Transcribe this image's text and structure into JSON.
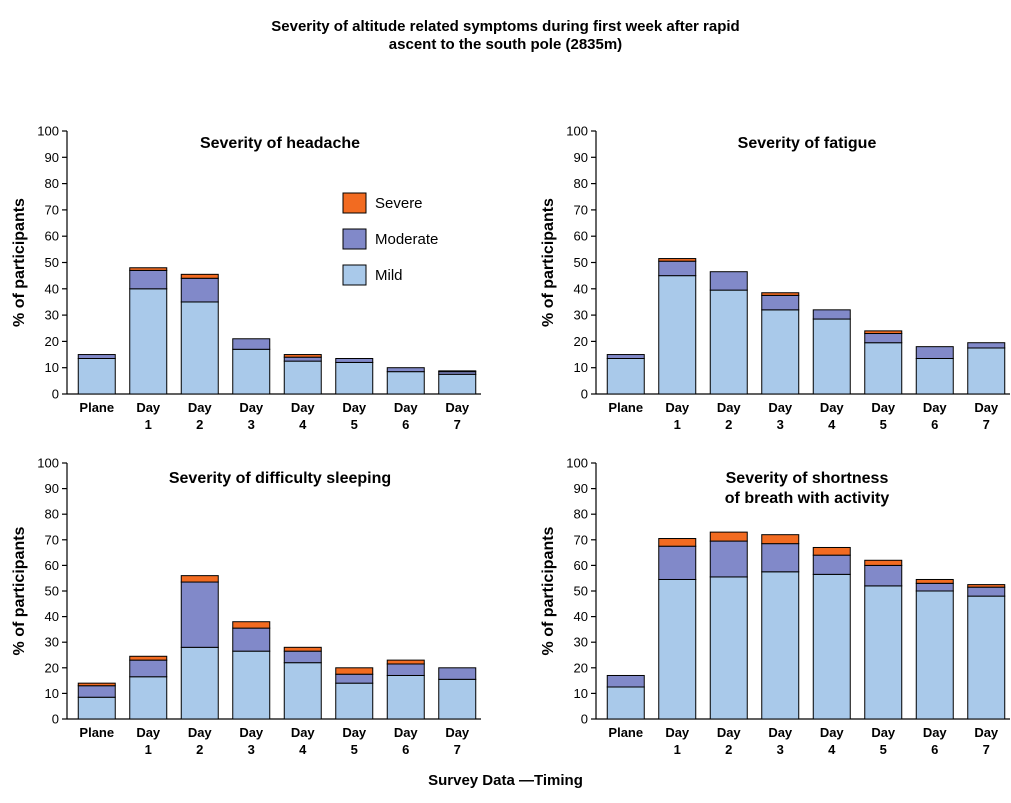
{
  "figure": {
    "title_line1": "Severity of altitude related symptoms during first week after rapid",
    "title_line2": "ascent to the south pole (2835m)",
    "xlabel": "Survey Data —Timing"
  },
  "legend": [
    {
      "name": "Severe",
      "color": "#f26b21"
    },
    {
      "name": "Moderate",
      "color": "#8189c9"
    },
    {
      "name": "Mild",
      "color": "#a9c9ea"
    }
  ],
  "chart_data": [
    {
      "type": "bar",
      "stacked": true,
      "title": [
        "Severity of headache"
      ],
      "ylabel": "% of participants",
      "ylim": [
        0,
        100
      ],
      "yticks": [
        0,
        10,
        20,
        30,
        40,
        50,
        60,
        70,
        80,
        90,
        100
      ],
      "categories": [
        [
          "Plane"
        ],
        [
          "Day",
          "1"
        ],
        [
          "Day",
          "2"
        ],
        [
          "Day",
          "3"
        ],
        [
          "Day",
          "4"
        ],
        [
          "Day",
          "5"
        ],
        [
          "Day",
          "6"
        ],
        [
          "Day",
          "7"
        ]
      ],
      "legend_position": "inside-right",
      "series": [
        {
          "name": "Mild",
          "color": "#a9c9ea",
          "values": [
            13.5,
            40,
            35,
            17,
            12.5,
            12,
            8.5,
            7.5
          ]
        },
        {
          "name": "Moderate",
          "color": "#8189c9",
          "values": [
            1.5,
            7,
            9,
            4,
            1.5,
            1.5,
            1.5,
            1
          ]
        },
        {
          "name": "Severe",
          "color": "#f26b21",
          "values": [
            0,
            1,
            1.5,
            0,
            1,
            0,
            0,
            0.3
          ]
        }
      ]
    },
    {
      "type": "bar",
      "stacked": true,
      "title": [
        "Severity of fatigue"
      ],
      "ylabel": "% of participants",
      "ylim": [
        0,
        100
      ],
      "yticks": [
        0,
        10,
        20,
        30,
        40,
        50,
        60,
        70,
        80,
        90,
        100
      ],
      "categories": [
        [
          "Plane"
        ],
        [
          "Day",
          "1"
        ],
        [
          "Day",
          "2"
        ],
        [
          "Day",
          "3"
        ],
        [
          "Day",
          "4"
        ],
        [
          "Day",
          "5"
        ],
        [
          "Day",
          "6"
        ],
        [
          "Day",
          "7"
        ]
      ],
      "series": [
        {
          "name": "Mild",
          "color": "#a9c9ea",
          "values": [
            13.5,
            45,
            39.5,
            32,
            28.5,
            19.5,
            13.5,
            17.5
          ]
        },
        {
          "name": "Moderate",
          "color": "#8189c9",
          "values": [
            1.5,
            5.5,
            7,
            5.5,
            3.5,
            3.5,
            4.5,
            2
          ]
        },
        {
          "name": "Severe",
          "color": "#f26b21",
          "values": [
            0,
            1,
            0,
            1,
            0,
            1,
            0,
            0
          ]
        }
      ]
    },
    {
      "type": "bar",
      "stacked": true,
      "title": [
        "Severity of difficulty sleeping"
      ],
      "ylabel": "% of participants",
      "ylim": [
        0,
        100
      ],
      "yticks": [
        0,
        10,
        20,
        30,
        40,
        50,
        60,
        70,
        80,
        90,
        100
      ],
      "categories": [
        [
          "Plane"
        ],
        [
          "Day",
          "1"
        ],
        [
          "Day",
          "2"
        ],
        [
          "Day",
          "3"
        ],
        [
          "Day",
          "4"
        ],
        [
          "Day",
          "5"
        ],
        [
          "Day",
          "6"
        ],
        [
          "Day",
          "7"
        ]
      ],
      "series": [
        {
          "name": "Mild",
          "color": "#a9c9ea",
          "values": [
            8.5,
            16.5,
            28,
            26.5,
            22,
            14,
            17,
            15.5
          ]
        },
        {
          "name": "Moderate",
          "color": "#8189c9",
          "values": [
            4.5,
            6.5,
            25.5,
            9,
            4.5,
            3.5,
            4.5,
            4.5
          ]
        },
        {
          "name": "Severe",
          "color": "#f26b21",
          "values": [
            1,
            1.5,
            2.5,
            2.5,
            1.5,
            2.5,
            1.5,
            0
          ]
        }
      ]
    },
    {
      "type": "bar",
      "stacked": true,
      "title": [
        "Severity of shortness",
        "of breath with activity"
      ],
      "ylabel": "% of participants",
      "ylim": [
        0,
        100
      ],
      "yticks": [
        0,
        10,
        20,
        30,
        40,
        50,
        60,
        70,
        80,
        90,
        100
      ],
      "categories": [
        [
          "Plane"
        ],
        [
          "Day",
          "1"
        ],
        [
          "Day",
          "2"
        ],
        [
          "Day",
          "3"
        ],
        [
          "Day",
          "4"
        ],
        [
          "Day",
          "5"
        ],
        [
          "Day",
          "6"
        ],
        [
          "Day",
          "7"
        ]
      ],
      "series": [
        {
          "name": "Mild",
          "color": "#a9c9ea",
          "values": [
            12.5,
            54.5,
            55.5,
            57.5,
            56.5,
            52,
            50,
            48
          ]
        },
        {
          "name": "Moderate",
          "color": "#8189c9",
          "values": [
            4.5,
            13,
            14,
            11,
            7.5,
            8,
            3,
            3.5
          ]
        },
        {
          "name": "Severe",
          "color": "#f26b21",
          "values": [
            0,
            3,
            3.5,
            3.5,
            3,
            2,
            1.5,
            1
          ]
        }
      ]
    }
  ]
}
